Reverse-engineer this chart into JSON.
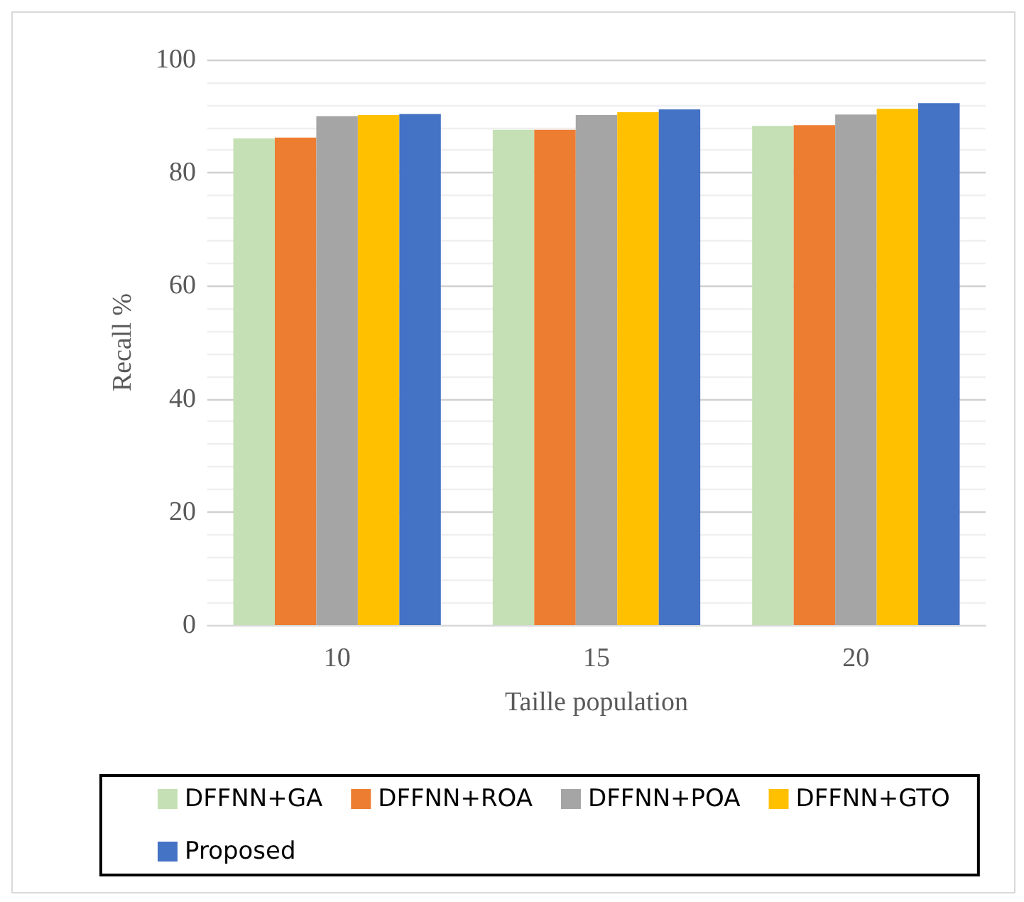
{
  "chart_data": {
    "type": "bar",
    "xlabel": "Taille population",
    "ylabel": "Recall %",
    "categories": [
      "10",
      "15",
      "20"
    ],
    "series": [
      {
        "name": "DFFNN+GA",
        "color": "#c5e0b4",
        "values": [
          86.1,
          87.6,
          88.3
        ]
      },
      {
        "name": "DFFNN+ROA",
        "color": "#ed7d31",
        "values": [
          86.2,
          87.6,
          88.4
        ]
      },
      {
        "name": "DFFNN+POA",
        "color": "#a5a5a5",
        "values": [
          90.0,
          90.2,
          90.3
        ]
      },
      {
        "name": "DFFNN+GTO",
        "color": "#ffc000",
        "values": [
          90.2,
          90.7,
          91.3
        ]
      },
      {
        "name": "Proposed",
        "color": "#4472c4",
        "values": [
          90.4,
          91.2,
          92.3
        ]
      }
    ],
    "ylim": [
      0,
      100
    ],
    "yticks": [
      0,
      {
        "value": 4,
        "label": null
      },
      {
        "value": 8,
        "label": null
      },
      {
        "value": 12,
        "label": null
      },
      {
        "value": 16,
        "label": null
      },
      20,
      {
        "value": 24,
        "label": null
      },
      {
        "value": 28,
        "label": null
      },
      {
        "value": 32,
        "label": null
      },
      {
        "value": 36,
        "label": null
      },
      40,
      {
        "value": 44,
        "label": null
      },
      {
        "value": 48,
        "label": null
      },
      {
        "value": 52,
        "label": null
      },
      {
        "value": 56,
        "label": null
      },
      60,
      {
        "value": 64,
        "label": null
      },
      {
        "value": 68,
        "label": null
      },
      {
        "value": 72,
        "label": null
      },
      {
        "value": 76,
        "label": null
      },
      80,
      {
        "value": 84,
        "label": null
      },
      {
        "value": 88,
        "label": null
      },
      {
        "value": 92,
        "label": null
      },
      {
        "value": 96,
        "label": null
      },
      100
    ],
    "grid": "y",
    "legend": "bottom"
  }
}
